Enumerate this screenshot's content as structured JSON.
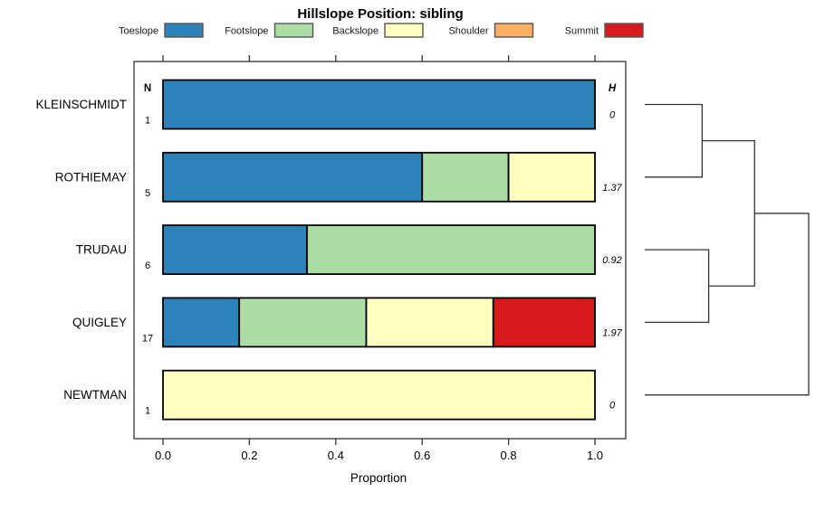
{
  "chart_data": {
    "type": "bar",
    "variant": "horizontal-stacked-proportion",
    "title": "Hillslope Position: sibling",
    "xlabel": "Proportion",
    "n_header": "N",
    "h_header": "H",
    "xlim": [
      0,
      1
    ],
    "x_ticks": [
      "0.0",
      "0.2",
      "0.4",
      "0.6",
      "0.8",
      "1.0"
    ],
    "x_tick_values": [
      0.0,
      0.2,
      0.4,
      0.6,
      0.8,
      1.0
    ],
    "grid": false,
    "legend_position": "top",
    "legend": [
      "Toeslope",
      "Footslope",
      "Backslope",
      "Shoulder",
      "Summit"
    ],
    "colors": {
      "Toeslope": "#2B83BA",
      "Footslope": "#ABDDA4",
      "Backslope": "#FFFFBF",
      "Shoulder": "#FDAE61",
      "Summit": "#D7191C"
    },
    "bar_border_color": "#000000",
    "rows": [
      {
        "label": "KLEINSCHMIDT",
        "n": "1",
        "h": "0",
        "segments": [
          {
            "category": "Toeslope",
            "proportion": 1.0
          }
        ]
      },
      {
        "label": "ROTHIEMAY",
        "n": "5",
        "h": "1.37",
        "segments": [
          {
            "category": "Toeslope",
            "proportion": 0.6
          },
          {
            "category": "Footslope",
            "proportion": 0.2
          },
          {
            "category": "Backslope",
            "proportion": 0.2
          }
        ]
      },
      {
        "label": "TRUDAU",
        "n": "6",
        "h": "0.92",
        "segments": [
          {
            "category": "Toeslope",
            "proportion": 0.3333
          },
          {
            "category": "Footslope",
            "proportion": 0.6667
          }
        ]
      },
      {
        "label": "QUIGLEY",
        "n": "17",
        "h": "1.97",
        "segments": [
          {
            "category": "Toeslope",
            "proportion": 0.1765
          },
          {
            "category": "Footslope",
            "proportion": 0.2941
          },
          {
            "category": "Backslope",
            "proportion": 0.2941
          },
          {
            "category": "Summit",
            "proportion": 0.2353
          }
        ]
      },
      {
        "label": "NEWTMAN",
        "n": "1",
        "h": "0",
        "segments": [
          {
            "category": "Backslope",
            "proportion": 1.0
          }
        ]
      }
    ],
    "dendrogram": {
      "side": "right",
      "leaves": [
        "KLEINSCHMIDT",
        "ROTHIEMAY",
        "TRUDAU",
        "QUIGLEY",
        "NEWTMAN"
      ],
      "joins": [
        {
          "id": "join0",
          "children": [
            "KLEINSCHMIDT",
            "ROTHIEMAY"
          ],
          "height": 0.35
        },
        {
          "id": "join1",
          "children": [
            "TRUDAU",
            "QUIGLEY"
          ],
          "height": 0.39
        },
        {
          "id": "join2",
          "children": [
            "join0",
            "join1"
          ],
          "height": 0.67
        },
        {
          "id": "join3",
          "children": [
            "join2",
            "NEWTMAN"
          ],
          "height": 1.0
        }
      ]
    }
  }
}
